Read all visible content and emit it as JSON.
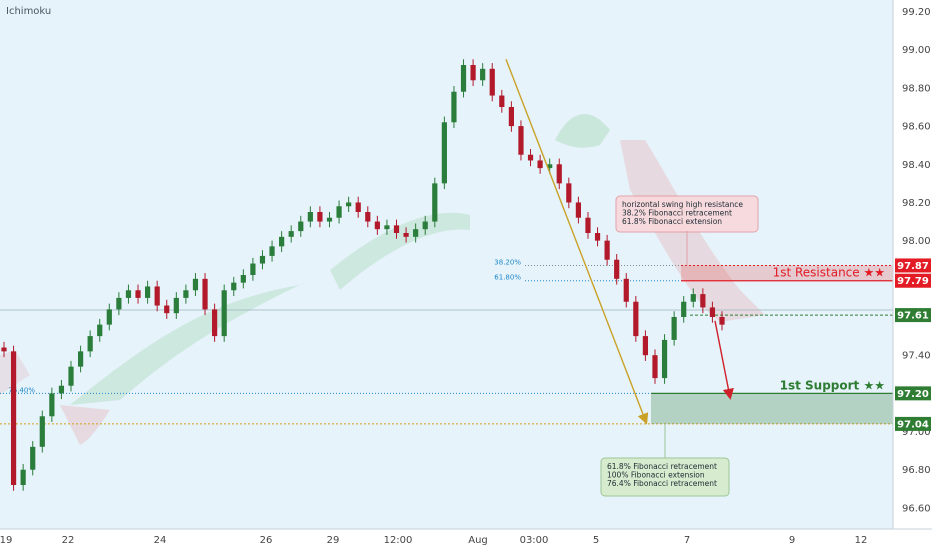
{
  "indicator_label": "Ichimoku",
  "colors": {
    "background": "#e6f3fb",
    "axis_bg": "#ffffff",
    "up": "#2a7d3a",
    "down": "#b2192a",
    "resistance": "#e21b25",
    "support": "#2e7d32",
    "arrow_down": "#d0202a",
    "trend_arrow": "#c9a227",
    "fib": "#1e88c8"
  },
  "chart_data": {
    "type": "candlestick",
    "title": "",
    "ylim": [
      96.5,
      99.25
    ],
    "y_ticks": [
      "99.20",
      "99.00",
      "98.80",
      "98.60",
      "98.40",
      "98.20",
      "98.00",
      "97.40",
      "96.80",
      "96.60"
    ],
    "x_ticks": [
      "19",
      "22",
      "24",
      "26",
      "29",
      "12:00",
      "Aug",
      "03:00",
      "5",
      "7",
      "9",
      "12"
    ],
    "price_levels": [
      {
        "value": 97.87,
        "label": "97.87",
        "kind": "resistance"
      },
      {
        "value": 97.79,
        "label": "97.79",
        "kind": "resistance"
      },
      {
        "value": 97.61,
        "label": "97.61",
        "kind": "pivot"
      },
      {
        "value": 97.2,
        "label": "97.20",
        "kind": "support"
      },
      {
        "value": 97.04,
        "label": "97.04",
        "kind": "support"
      }
    ],
    "extra_axis_label": "97.00",
    "fib_labels": [
      {
        "label": "38.20%",
        "value": 97.87
      },
      {
        "label": "61.80%",
        "value": 97.79
      },
      {
        "label": "76.40%",
        "value": 97.2
      }
    ],
    "zones": [
      {
        "label": "1st Resistance ★★",
        "top": 97.87,
        "bottom": 97.79
      },
      {
        "label": "1st Support ★★",
        "top": 97.2,
        "bottom": 97.04
      }
    ],
    "annotations": [
      {
        "lines": [
          "horizontal swing high resistance",
          "38.2% Fibonacci retracement",
          "61.8% Fibonacci extension"
        ],
        "kind": "resistance"
      },
      {
        "lines": [
          "61.8% Fibonacci retracement",
          "100% Fibonacci extension",
          "76.4% Fibonacci retracement"
        ],
        "kind": "support"
      }
    ],
    "series": [
      {
        "name": "",
        "values": [
          97.42,
          96.72,
          96.8,
          96.92,
          97.08,
          97.2,
          97.24,
          97.34,
          97.42,
          97.5,
          97.56,
          97.64,
          97.7,
          97.74,
          97.7,
          97.76,
          97.66,
          97.62,
          97.7,
          97.74,
          97.8,
          97.64,
          97.5,
          97.74,
          97.78,
          97.82,
          97.88,
          97.92,
          97.97,
          98.02,
          98.05,
          98.1,
          98.15,
          98.1,
          98.12,
          98.18,
          98.2,
          98.15,
          98.1,
          98.06,
          98.08,
          98.04,
          98.02,
          98.06,
          98.1,
          98.3,
          98.62,
          98.78,
          98.92,
          98.84,
          98.9,
          98.76,
          98.7,
          98.6,
          98.45,
          98.42,
          98.38,
          98.4,
          98.3,
          98.2,
          98.12,
          98.04,
          98.0,
          97.9,
          97.8,
          97.68,
          97.5,
          97.4,
          97.28,
          97.48,
          97.6,
          97.68,
          97.72,
          97.65,
          97.6,
          97.56
        ]
      }
    ]
  }
}
